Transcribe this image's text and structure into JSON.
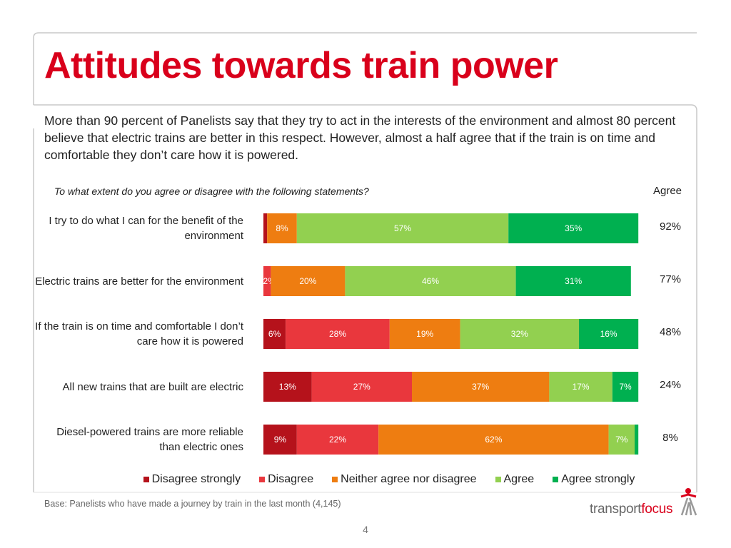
{
  "chart_data": {
    "type": "stacked-bar",
    "title": "Attitudes towards train power",
    "subtitle": "More than 90 percent of Panelists say that they try to act in the interests of the environment and almost 80 percent believe that electric trains are better in this respect.  However, almost a half agree that if the train is on time and comfortable they don’t care how it is powered.",
    "question": "To what extent do you agree or disagree with the following statements?",
    "categories": [
      "I try to do what I can for the benefit of the environment",
      "Electric trains are better for the environment",
      "If the train is on time and comfortable I don’t care how it is powered",
      "All new trains that are built are electric",
      "Diesel-powered trains are more reliable than electric ones"
    ],
    "xlim": [
      0,
      100
    ],
    "series": [
      {
        "name": "Disagree strongly",
        "color": "#b5121b",
        "values": [
          1,
          0,
          6,
          13,
          9
        ],
        "value_labels": [
          null,
          null,
          "6%",
          "13%",
          "9%"
        ]
      },
      {
        "name": "Disagree",
        "color": "#e9373d",
        "values": [
          0,
          2,
          28,
          27,
          22
        ],
        "value_labels": [
          null,
          "2%",
          "28%",
          "27%",
          "22%"
        ]
      },
      {
        "name": "Neither agree nor disagree",
        "color": "#ee7d11",
        "values": [
          8,
          20,
          19,
          37,
          62
        ],
        "value_labels": [
          "8%",
          "20%",
          "19%",
          "37%",
          "62%"
        ]
      },
      {
        "name": "Agree",
        "color": "#92d050",
        "values": [
          57,
          46,
          32,
          17,
          7
        ],
        "value_labels": [
          "57%",
          "46%",
          "32%",
          "17%",
          "7%"
        ]
      },
      {
        "name": "Agree strongly",
        "color": "#00b050",
        "values": [
          35,
          31,
          16,
          7,
          1
        ],
        "value_labels": [
          "35%",
          "31%",
          "16%",
          "7%",
          null
        ]
      }
    ],
    "totals": {
      "title": "Agree",
      "values": [
        92,
        77,
        48,
        24,
        8
      ],
      "value_labels": [
        "92%",
        "77%",
        "48%",
        "24%",
        "8%"
      ]
    },
    "base_note": "Base: Panelists who have made a journey by train in the last month (4,145)",
    "page_number": "4",
    "logo": {
      "first": "transport",
      "second": "focus"
    }
  }
}
